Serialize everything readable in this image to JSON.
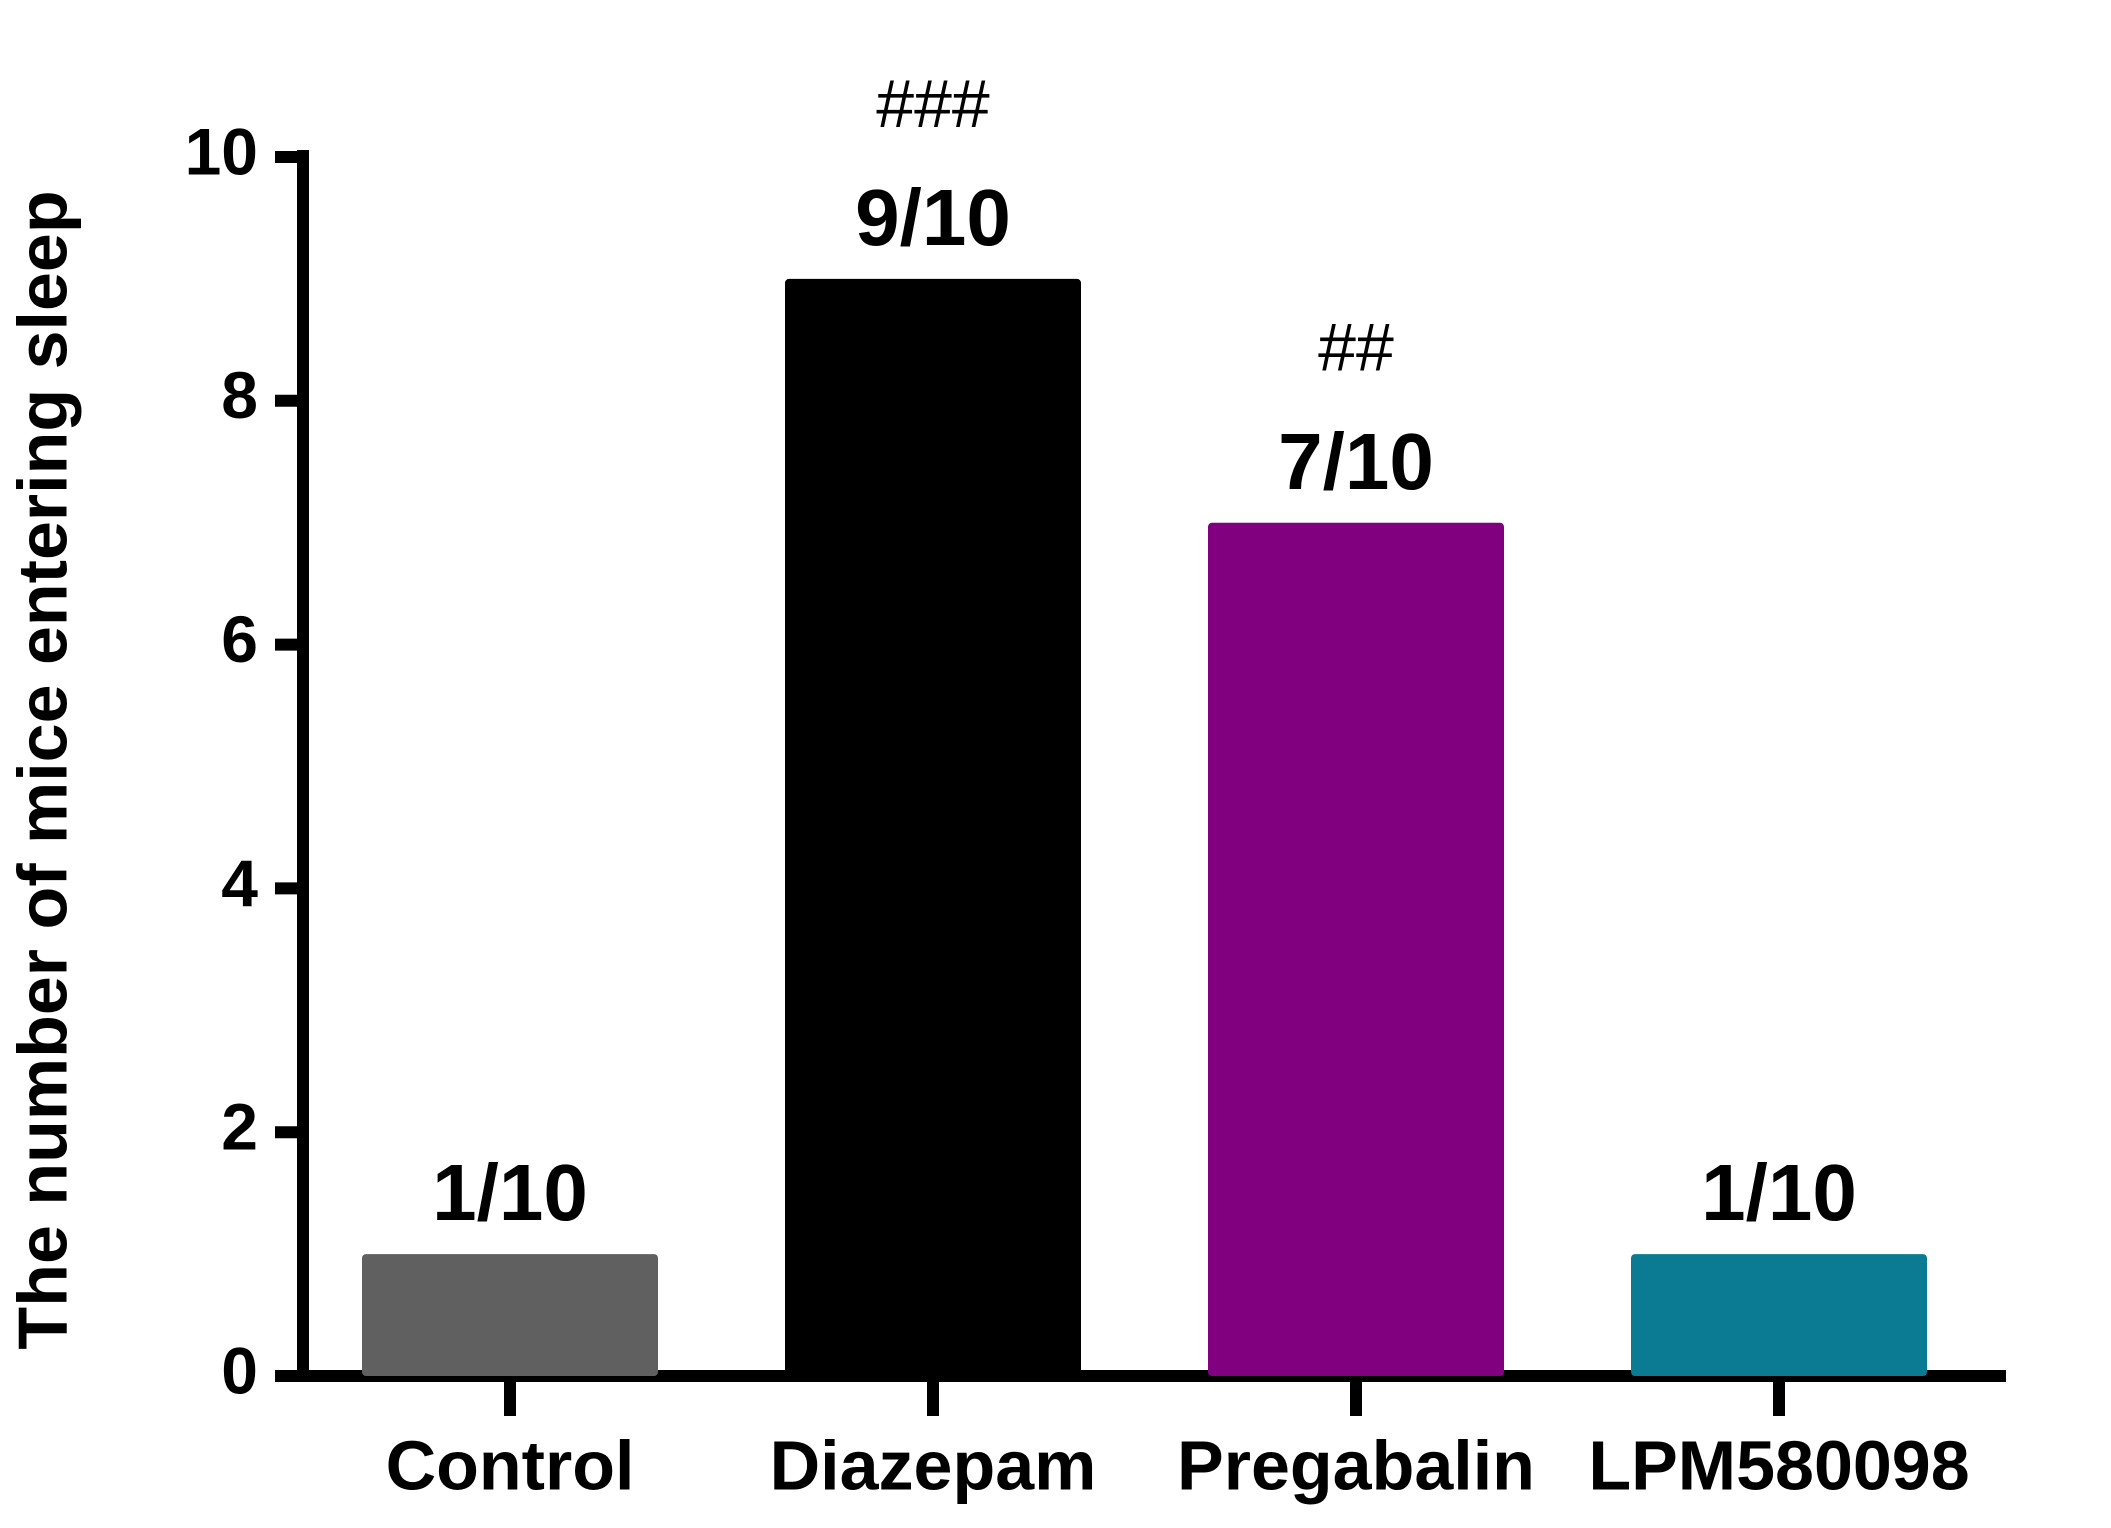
{
  "chart_data": {
    "type": "bar",
    "y_axis_label": "The number of mice entering sleep",
    "categories": [
      "Control",
      "Diazepam",
      "Pregabalin",
      "LPM580098"
    ],
    "values": [
      1,
      9,
      7,
      1
    ],
    "value_labels": [
      "1/10",
      "9/10",
      "7/10",
      "1/10"
    ],
    "significance": [
      null,
      "###",
      "##",
      null
    ],
    "colors": [
      "#606060",
      "#000000",
      "#800080",
      "#0a7b93"
    ],
    "ylim": [
      0,
      10
    ],
    "yticks": [
      0,
      2,
      4,
      6,
      8,
      10
    ]
  }
}
